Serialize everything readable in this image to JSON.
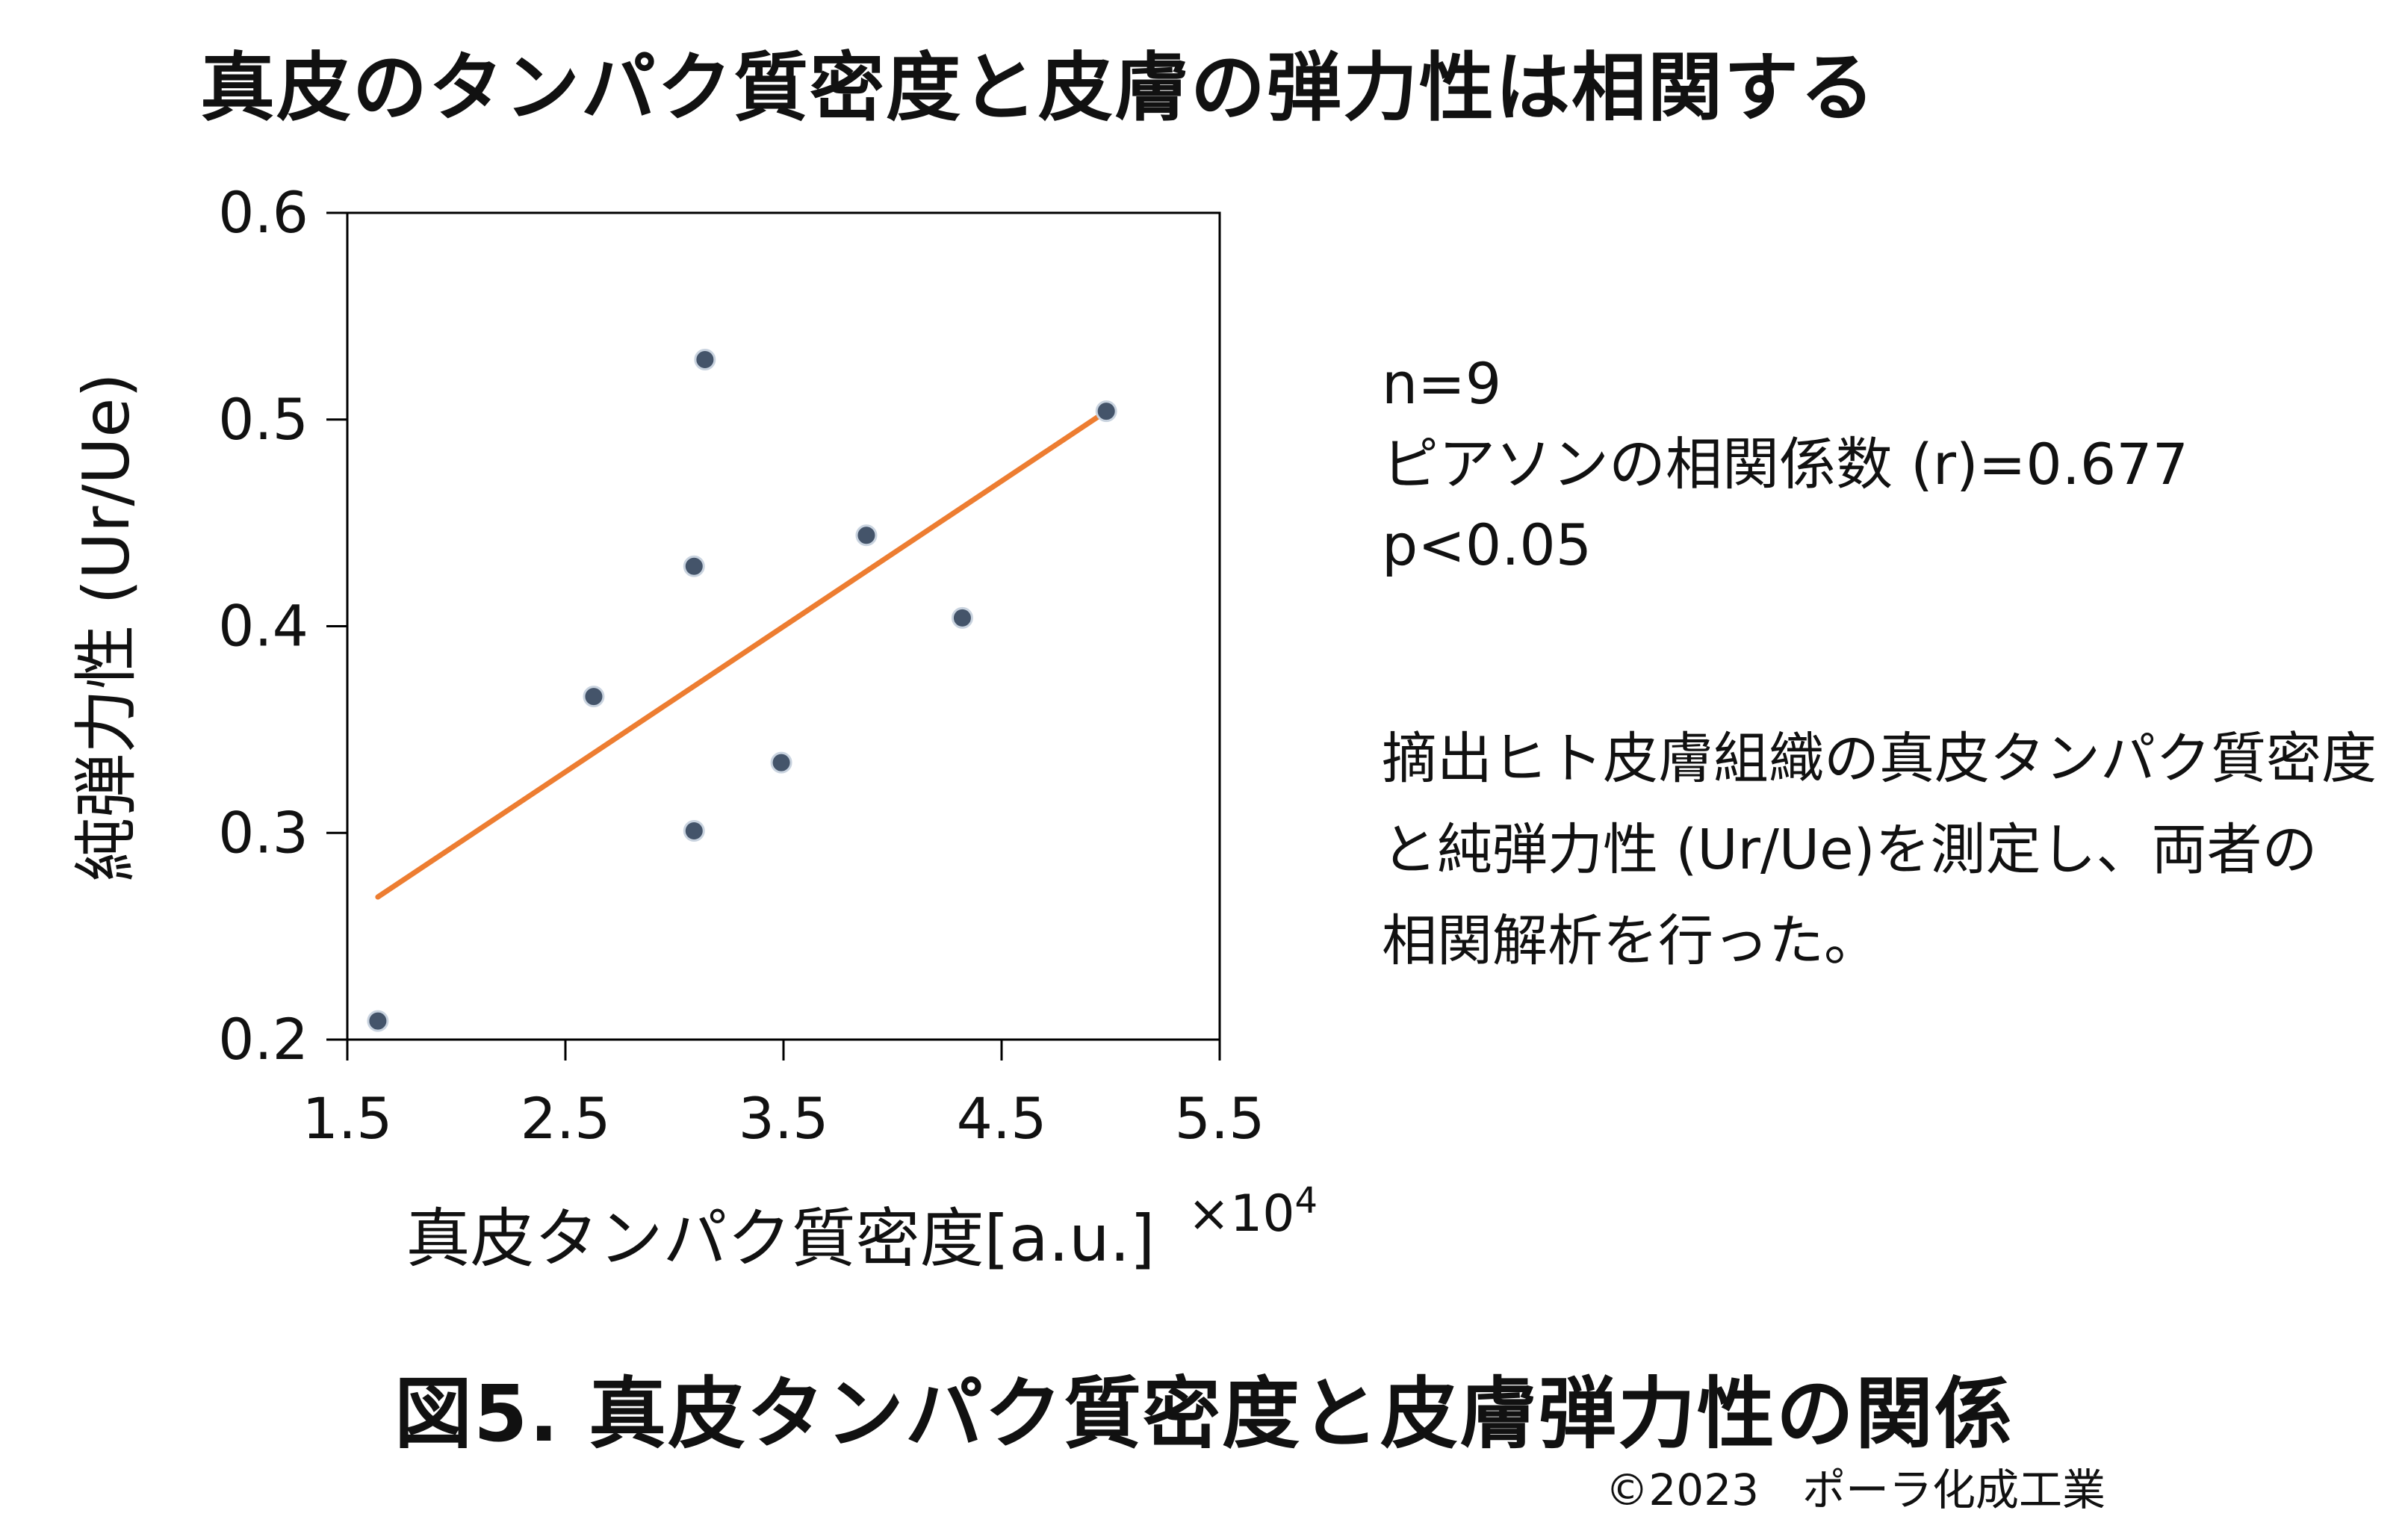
{
  "title": "真皮のタンパク質密度と皮膚の弾力性は相関する",
  "stats": {
    "n": "n=9",
    "pearson": "ピアソンの相関係数 (r)=0.677",
    "p": "p<0.05"
  },
  "description": [
    "摘出ヒト皮膚組織の真皮タンパク質密度",
    "と純弾力性 (Ur/Ue)を測定し、両者の",
    "相関解析を行った。"
  ],
  "figure_caption": "図5. 真皮タンパク質密度と皮膚弾力性の関係",
  "copyright": "©2023　ポーラ化成工業",
  "colors": {
    "point": "#44546a",
    "trendline": "#ed7d31",
    "axis": "#000000"
  },
  "chart_data": {
    "type": "scatter",
    "xlabel": "真皮タンパク質密度[a.u.]",
    "x_multiplier_base": "×10",
    "x_multiplier_exp": "4",
    "ylabel": "純弾力性 (Ur/Ue)",
    "xlim": [
      1.5,
      5.5
    ],
    "ylim": [
      0.2,
      0.6
    ],
    "xticks": [
      "1.5",
      "2.5",
      "3.5",
      "4.5",
      "5.5"
    ],
    "yticks": [
      "0.2",
      "0.3",
      "0.4",
      "0.5",
      "0.6"
    ],
    "grid": false,
    "legend": "none",
    "points": [
      {
        "x": 1.64,
        "y": 0.209
      },
      {
        "x": 2.63,
        "y": 0.366
      },
      {
        "x": 3.09,
        "y": 0.301
      },
      {
        "x": 3.09,
        "y": 0.429
      },
      {
        "x": 3.14,
        "y": 0.529
      },
      {
        "x": 3.49,
        "y": 0.334
      },
      {
        "x": 3.88,
        "y": 0.444
      },
      {
        "x": 4.32,
        "y": 0.404
      },
      {
        "x": 4.98,
        "y": 0.504
      }
    ],
    "trendline": {
      "x": [
        1.64,
        4.98
      ],
      "y": [
        0.269,
        0.504
      ]
    }
  }
}
